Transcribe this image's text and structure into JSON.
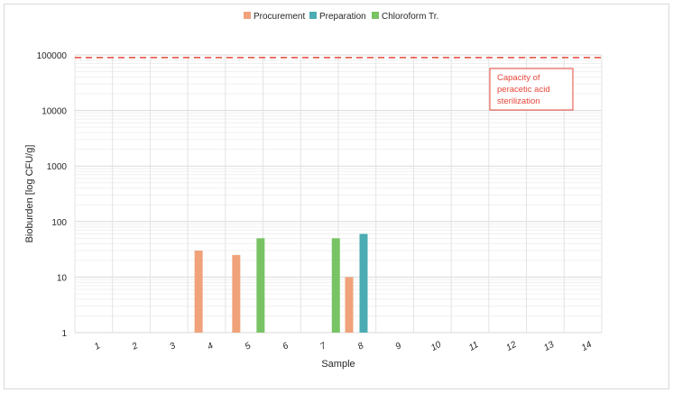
{
  "chart_data": {
    "type": "bar",
    "title": "",
    "xlabel": "Sample",
    "ylabel": "Bioburden [log CFU/g]",
    "yscale": "log",
    "ylim": [
      1,
      100000
    ],
    "ytick_labels": [
      "1",
      "10",
      "100",
      "1000",
      "10000",
      "100000"
    ],
    "categories": [
      "1",
      "2",
      "3",
      "4",
      "5",
      "6",
      "7",
      "8",
      "9",
      "10",
      "11",
      "12",
      "13",
      "14"
    ],
    "series": [
      {
        "name": "Procurement",
        "color": "#f0a27a",
        "values": [
          null,
          null,
          null,
          30,
          25,
          null,
          null,
          10,
          null,
          null,
          null,
          null,
          null,
          null
        ]
      },
      {
        "name": "Preparation",
        "color": "#4bacb3",
        "values": [
          null,
          null,
          null,
          null,
          null,
          null,
          null,
          60,
          null,
          null,
          null,
          null,
          null,
          null
        ]
      },
      {
        "name": "Chloroform Tr.",
        "color": "#78c464",
        "values": [
          null,
          null,
          null,
          null,
          50,
          null,
          50,
          null,
          null,
          null,
          null,
          null,
          null,
          null
        ]
      }
    ],
    "reference_line": {
      "value": 90000,
      "color": "#e8473a",
      "style": "dashed"
    },
    "annotation": {
      "text_lines": [
        "Capacity of",
        "peracetic acid",
        "sterilization"
      ],
      "color": "#e8473a"
    },
    "legend_position": "top-center",
    "grid": true
  }
}
